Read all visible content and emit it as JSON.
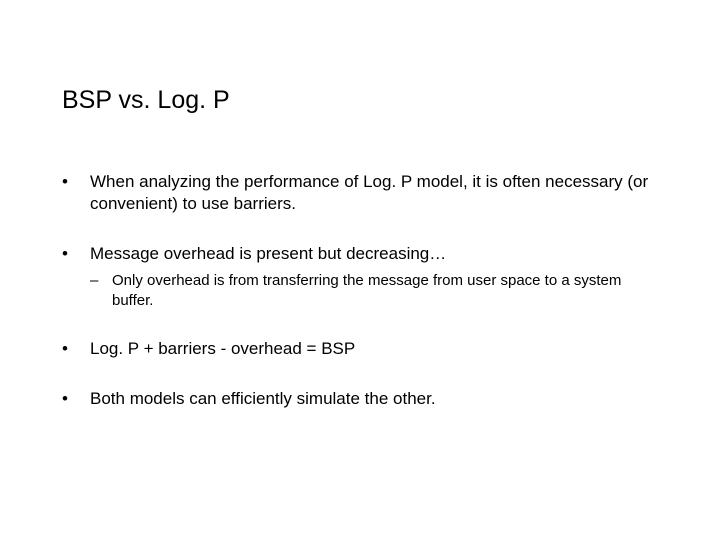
{
  "title": "BSP vs. Log. P",
  "bullets": [
    {
      "text": "When analyzing the performance of Log. P model, it is often necessary (or convenient) to use barriers."
    },
    {
      "text": "Message overhead is present but decreasing…",
      "sub": "Only overhead is from transferring the message from user space to a system buffer."
    },
    {
      "text": "Log. P + barriers - overhead = BSP"
    },
    {
      "text": "Both models can efficiently simulate the other."
    }
  ],
  "styling": {
    "background_color": "#ffffff",
    "text_color": "#000000",
    "title_fontsize": 25,
    "bullet_fontsize": 17,
    "sub_bullet_fontsize": 15,
    "font_family": "Arial, Helvetica, sans-serif",
    "bullet_marker": "•",
    "sub_bullet_marker": "–"
  }
}
